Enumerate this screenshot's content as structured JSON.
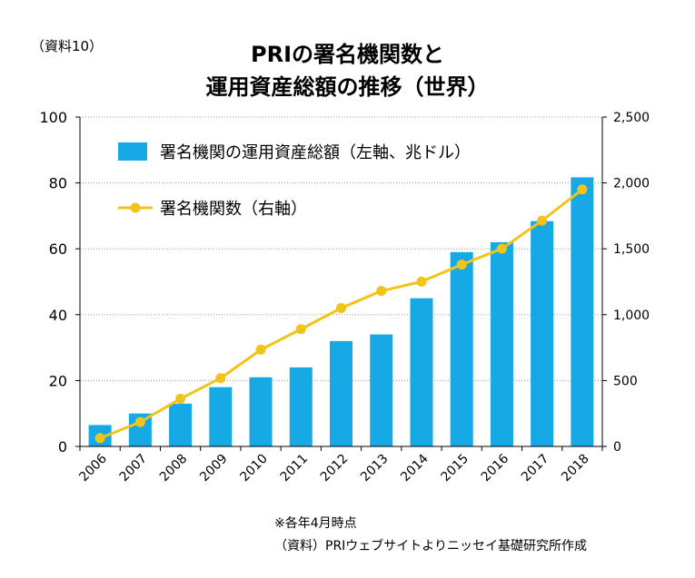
{
  "header": {
    "source_ref": "（資料10）",
    "title_line1": "PRIの署名機関数と",
    "title_line2": "運用資産総額の推移（世界）"
  },
  "notes": {
    "note1": "※各年4月時点",
    "note2": "（資料）PRIウェブサイトよりニッセイ基礎研究所作成"
  },
  "colors": {
    "bar": "#17a9e6",
    "line": "#f2c318",
    "axis": "#000000",
    "grid": "#999999"
  },
  "chart_data": {
    "type": "bar",
    "categories": [
      "2006",
      "2007",
      "2008",
      "2009",
      "2010",
      "2011",
      "2012",
      "2013",
      "2014",
      "2015",
      "2016",
      "2017",
      "2018"
    ],
    "series": [
      {
        "name": "署名機関の運用資産総額（左軸、兆ドル）",
        "type": "bar",
        "axis": "left",
        "values": [
          6.5,
          10,
          13,
          18,
          21,
          24,
          32,
          34,
          45,
          59,
          62,
          68.4,
          81.7
        ]
      },
      {
        "name": "署名機関数（右軸）",
        "type": "line",
        "axis": "right",
        "values": [
          63,
          185,
          362,
          518,
          734,
          890,
          1050,
          1180,
          1251,
          1380,
          1501,
          1714,
          1951
        ]
      }
    ],
    "y_left": {
      "min": 0,
      "max": 100,
      "ticks": [
        "0",
        "20",
        "40",
        "60",
        "80",
        "100"
      ]
    },
    "y_right": {
      "min": 0,
      "max": 2500,
      "ticks": [
        "0",
        "500",
        "1,000",
        "1,500",
        "2,000",
        "2,500"
      ]
    },
    "grid": true,
    "legend_position": "top-left"
  }
}
